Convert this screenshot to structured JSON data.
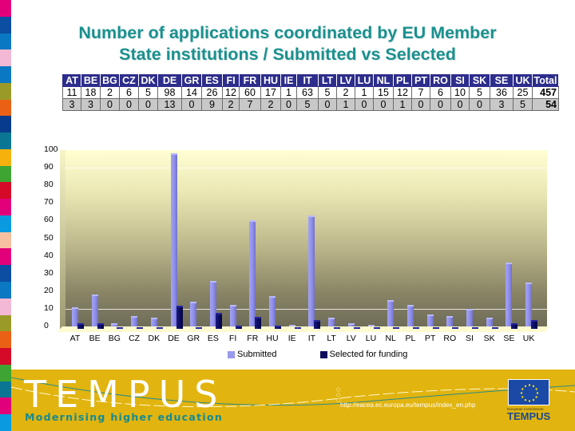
{
  "slide": {
    "title_line1": "Number of applications coordinated by EU Member",
    "title_line2": "State institutions / Submitted vs Selected",
    "stripe_colors": [
      "#e2007a",
      "#0b4ea2",
      "#0a78c2",
      "#f2b8d4",
      "#0a78c2",
      "#9a9a28",
      "#ea6115",
      "#073c8c",
      "#0a7694",
      "#f6b10c",
      "#3ea532",
      "#d40a28",
      "#e2007a",
      "#0a9ae0",
      "#f7c0a0",
      "#e2007a",
      "#0b4ea2",
      "#0a78c2",
      "#f2b8d4",
      "#9a9a28",
      "#ea6115",
      "#d40a28",
      "#3ea532",
      "#0a7694",
      "#e2007a",
      "#0a9ae0"
    ]
  },
  "table": {
    "headers": [
      "AT",
      "BE",
      "BG",
      "CZ",
      "DK",
      "DE",
      "GR",
      "ES",
      "FI",
      "FR",
      "HU",
      "IE",
      "IT",
      "LT",
      "LV",
      "LU",
      "NL",
      "PL",
      "PT",
      "RO",
      "SI",
      "SK",
      "SE",
      "UK",
      "Total"
    ],
    "submitted": [
      "11",
      "18",
      "2",
      "6",
      "5",
      "98",
      "14",
      "26",
      "12",
      "60",
      "17",
      "1",
      "63",
      "5",
      "2",
      "1",
      "15",
      "12",
      "7",
      "6",
      "10",
      "5",
      "36",
      "25",
      "457"
    ],
    "selected": [
      "3",
      "3",
      "0",
      "0",
      "0",
      "13",
      "0",
      "9",
      "2",
      "7",
      "2",
      "0",
      "5",
      "0",
      "1",
      "0",
      "0",
      "1",
      "0",
      "0",
      "0",
      "0",
      "3",
      "5",
      "54"
    ]
  },
  "chart_data": {
    "type": "bar",
    "title": "Number of applications coordinated by EU Member State institutions / Submitted vs Selected",
    "xlabel": "",
    "ylabel": "",
    "ylim": [
      0,
      100
    ],
    "yticks": [
      "0",
      "10",
      "20",
      "30",
      "40",
      "50",
      "60",
      "70",
      "80",
      "90",
      "100"
    ],
    "grid": true,
    "legend_position": "bottom",
    "categories": [
      "AT",
      "BE",
      "BG",
      "CZ",
      "DK",
      "DE",
      "GR",
      "ES",
      "FI",
      "FR",
      "HU",
      "IE",
      "IT",
      "LT",
      "LV",
      "LU",
      "NL",
      "PL",
      "PT",
      "RO",
      "SI",
      "SK",
      "SE",
      "UK"
    ],
    "series": [
      {
        "name": "Submitted",
        "color": "#9999ee",
        "values": [
          11,
          18,
          2,
          6,
          5,
          98,
          14,
          26,
          12,
          60,
          17,
          1,
          63,
          5,
          2,
          1,
          15,
          12,
          7,
          6,
          10,
          5,
          36,
          25
        ]
      },
      {
        "name": "Selected for funding",
        "color": "#0a0a5e",
        "values": [
          3,
          3,
          0,
          0,
          0,
          13,
          0,
          9,
          2,
          7,
          2,
          0,
          5,
          0,
          1,
          0,
          0,
          1,
          0,
          0,
          0,
          0,
          3,
          5
        ]
      }
    ]
  },
  "legend": {
    "submitted_label": "Submitted",
    "selected_label": "Selected for funding"
  },
  "footer": {
    "logo_text": "TEMPUS",
    "tagline": "Modernising higher education",
    "url": "http://eacea.ec.europa.eu/tempus/index_en.php",
    "eu_caption": "European Commission",
    "eu_logo_text": "TEMPUS",
    "background_color": "#e1b40f"
  }
}
